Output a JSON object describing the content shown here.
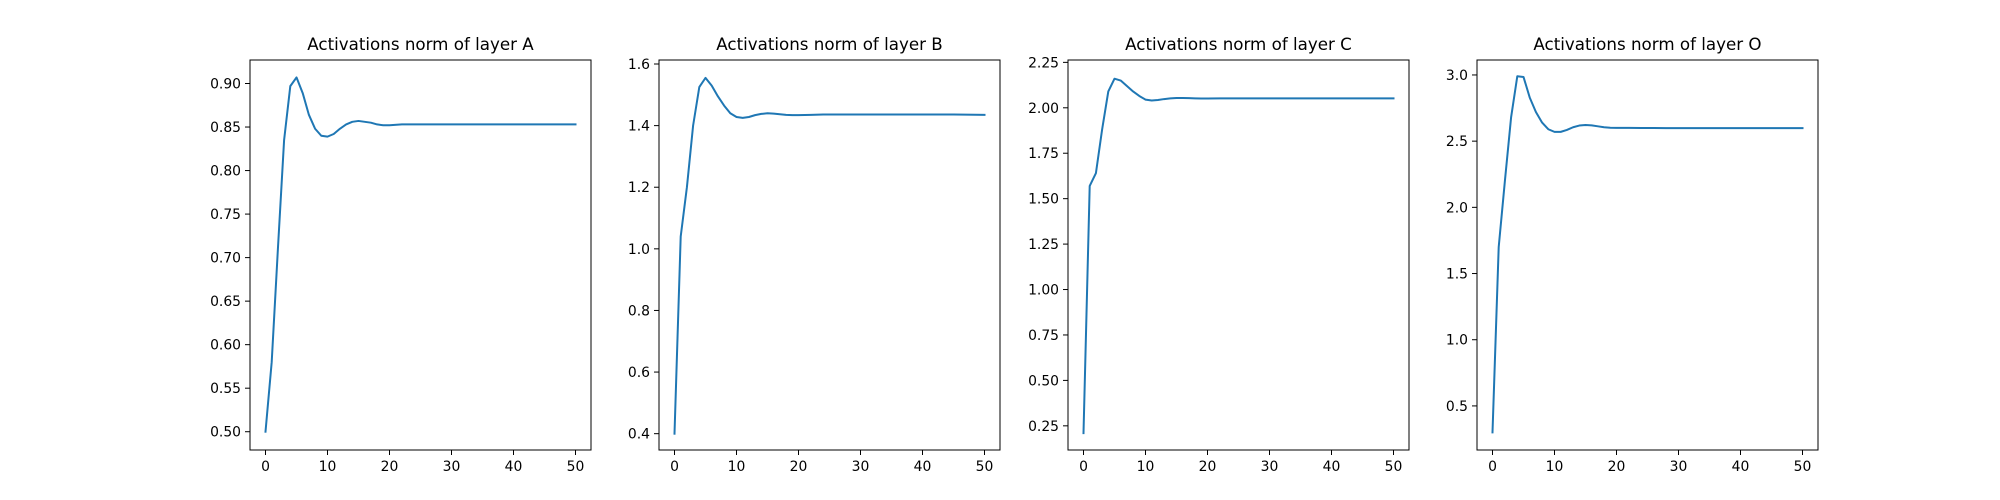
{
  "chart_data": [
    {
      "type": "line",
      "title": "Activations norm of layer A",
      "xlim": [
        -2.5,
        52.5
      ],
      "ylim": [
        0.479,
        0.927
      ],
      "xticks": [
        0,
        10,
        20,
        30,
        40,
        50
      ],
      "yticks": [
        0.5,
        0.55,
        0.6,
        0.65,
        0.7,
        0.75,
        0.8,
        0.85,
        0.9
      ],
      "ytick_labels": [
        "0.50",
        "0.55",
        "0.60",
        "0.65",
        "0.70",
        "0.75",
        "0.80",
        "0.85",
        "0.90"
      ],
      "grid": false,
      "series": [
        {
          "color": "#1f77b4",
          "x": [
            0,
            1,
            2,
            3,
            4,
            5,
            6,
            7,
            8,
            9,
            10,
            11,
            12,
            13,
            14,
            15,
            16,
            17,
            18,
            19,
            20,
            22,
            24,
            26,
            28,
            30,
            35,
            40,
            45,
            50
          ],
          "y": [
            0.5,
            0.58,
            0.71,
            0.835,
            0.897,
            0.907,
            0.889,
            0.864,
            0.848,
            0.84,
            0.839,
            0.842,
            0.848,
            0.853,
            0.856,
            0.857,
            0.856,
            0.855,
            0.853,
            0.852,
            0.852,
            0.853,
            0.853,
            0.853,
            0.853,
            0.853,
            0.853,
            0.853,
            0.853,
            0.853
          ]
        }
      ]
    },
    {
      "type": "line",
      "title": "Activations norm of layer B",
      "xlim": [
        -2.5,
        52.5
      ],
      "ylim": [
        0.347,
        1.613
      ],
      "xticks": [
        0,
        10,
        20,
        30,
        40,
        50
      ],
      "yticks": [
        0.4,
        0.6,
        0.8,
        1.0,
        1.2,
        1.4,
        1.6
      ],
      "ytick_labels": [
        "0.4",
        "0.6",
        "0.8",
        "1.0",
        "1.2",
        "1.4",
        "1.6"
      ],
      "grid": false,
      "series": [
        {
          "color": "#1f77b4",
          "x": [
            0,
            1,
            2,
            3,
            4,
            5,
            6,
            7,
            8,
            9,
            10,
            11,
            12,
            13,
            14,
            15,
            16,
            17,
            18,
            19,
            20,
            22,
            24,
            26,
            28,
            30,
            35,
            40,
            45,
            50
          ],
          "y": [
            0.4,
            1.04,
            1.2,
            1.4,
            1.525,
            1.555,
            1.53,
            1.495,
            1.465,
            1.44,
            1.428,
            1.425,
            1.428,
            1.434,
            1.438,
            1.44,
            1.439,
            1.437,
            1.435,
            1.434,
            1.434,
            1.435,
            1.436,
            1.436,
            1.436,
            1.436,
            1.436,
            1.436,
            1.436,
            1.435
          ]
        }
      ]
    },
    {
      "type": "line",
      "title": "Activations norm of layer C",
      "xlim": [
        -2.5,
        52.5
      ],
      "ylim": [
        0.117,
        2.263
      ],
      "xticks": [
        0,
        10,
        20,
        30,
        40,
        50
      ],
      "yticks": [
        0.25,
        0.5,
        0.75,
        1.0,
        1.25,
        1.5,
        1.75,
        2.0,
        2.25
      ],
      "ytick_labels": [
        "0.25",
        "0.50",
        "0.75",
        "1.00",
        "1.25",
        "1.50",
        "1.75",
        "2.00",
        "2.25"
      ],
      "grid": false,
      "series": [
        {
          "color": "#1f77b4",
          "x": [
            0,
            1,
            2,
            3,
            4,
            5,
            6,
            7,
            8,
            9,
            10,
            11,
            12,
            13,
            14,
            15,
            16,
            17,
            18,
            19,
            20,
            22,
            24,
            26,
            28,
            30,
            35,
            40,
            45,
            50
          ],
          "y": [
            0.21,
            1.57,
            1.64,
            1.88,
            2.09,
            2.16,
            2.15,
            2.12,
            2.09,
            2.065,
            2.045,
            2.04,
            2.043,
            2.048,
            2.052,
            2.054,
            2.054,
            2.053,
            2.052,
            2.051,
            2.051,
            2.052,
            2.052,
            2.052,
            2.052,
            2.052,
            2.052,
            2.052,
            2.052,
            2.052
          ]
        }
      ]
    },
    {
      "type": "line",
      "title": "Activations norm of layer O",
      "xlim": [
        -2.5,
        52.5
      ],
      "ylim": [
        0.167,
        3.113
      ],
      "xticks": [
        0,
        10,
        20,
        30,
        40,
        50
      ],
      "yticks": [
        0.5,
        1.0,
        1.5,
        2.0,
        2.5,
        3.0
      ],
      "ytick_labels": [
        "0.5",
        "1.0",
        "1.5",
        "2.0",
        "2.5",
        "3.0"
      ],
      "grid": false,
      "series": [
        {
          "color": "#1f77b4",
          "x": [
            0,
            1,
            2,
            3,
            4,
            5,
            6,
            7,
            8,
            9,
            10,
            11,
            12,
            13,
            14,
            15,
            16,
            17,
            18,
            19,
            20,
            22,
            24,
            26,
            28,
            30,
            35,
            40,
            45,
            50
          ],
          "y": [
            0.3,
            1.7,
            2.2,
            2.68,
            2.99,
            2.985,
            2.83,
            2.72,
            2.64,
            2.59,
            2.57,
            2.57,
            2.585,
            2.605,
            2.618,
            2.622,
            2.619,
            2.612,
            2.605,
            2.601,
            2.6,
            2.6,
            2.599,
            2.599,
            2.598,
            2.598,
            2.598,
            2.598,
            2.598,
            2.598
          ]
        }
      ]
    }
  ]
}
